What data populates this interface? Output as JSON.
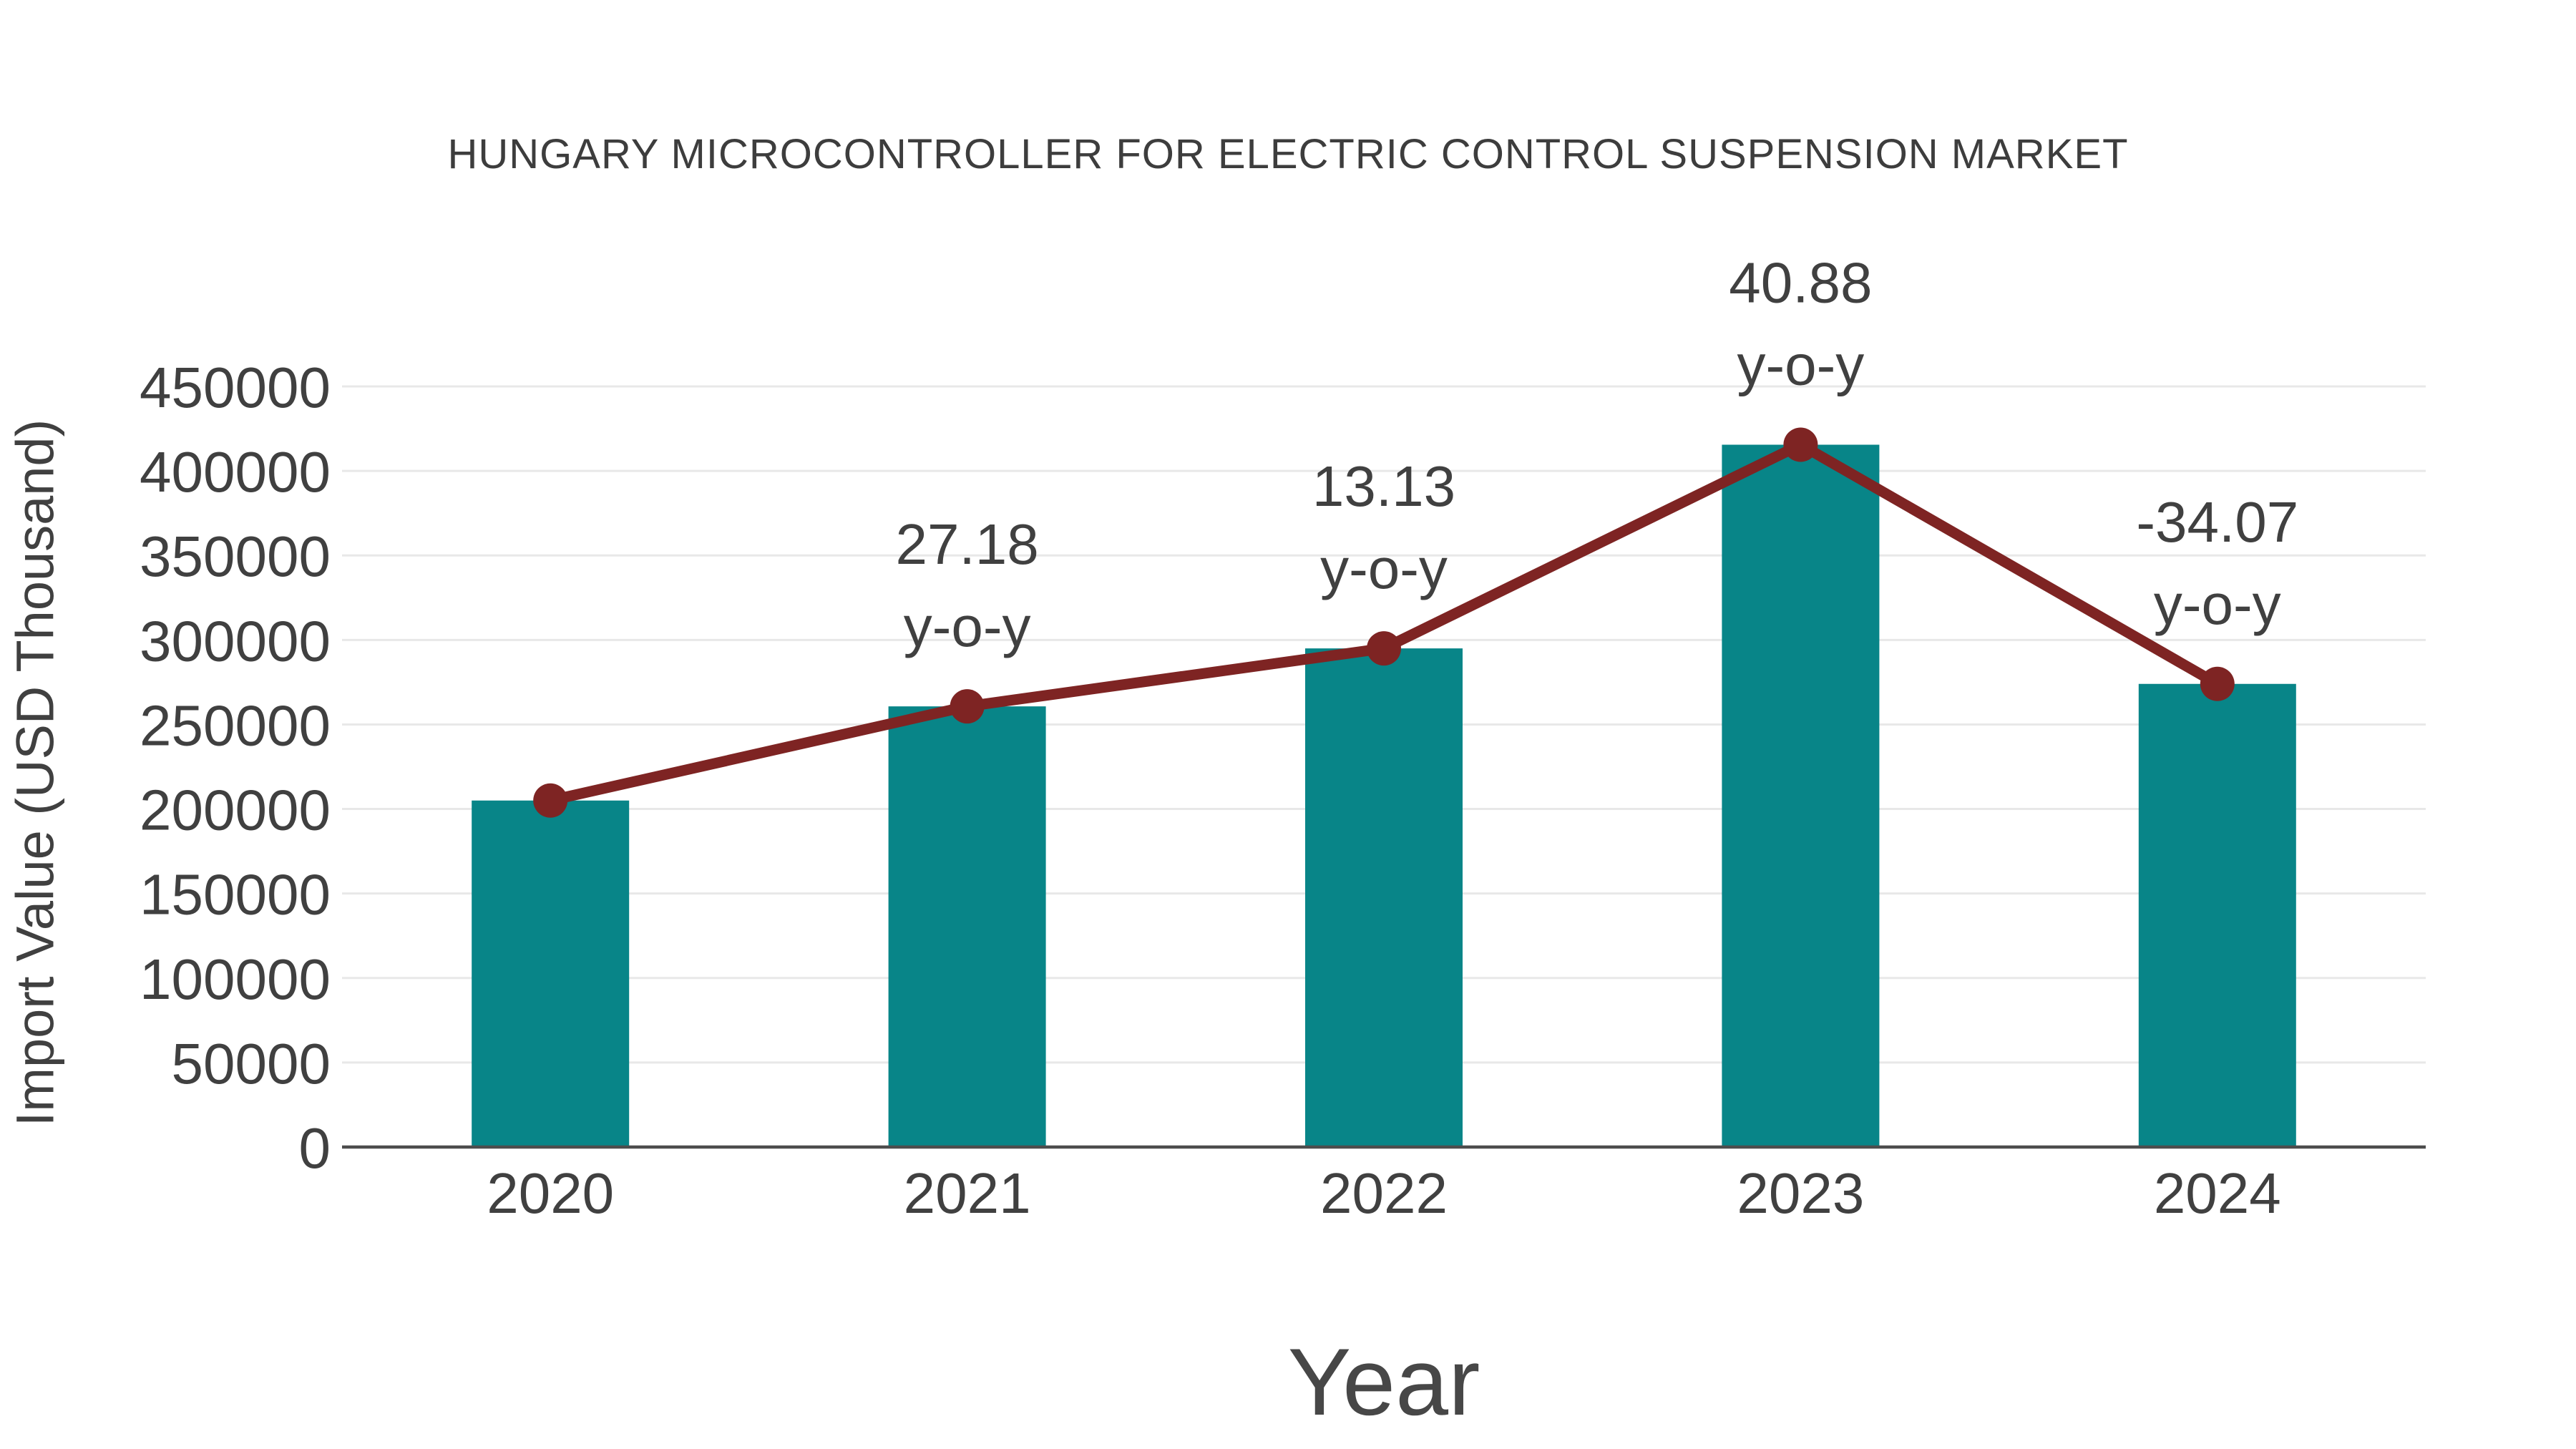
{
  "chart": {
    "title": "HUNGARY MICROCONTROLLER FOR ELECTRIC CONTROL SUSPENSION MARKET",
    "xlabel": "Year",
    "ylabel": "Import Value (USD Thousand)"
  },
  "chart_data": {
    "type": "bar",
    "title": "HUNGARY MICROCONTROLLER FOR ELECTRIC CONTROL SUSPENSION MARKET",
    "xlabel": "Year",
    "ylabel": "Import Value (USD Thousand)",
    "categories": [
      "2020",
      "2021",
      "2022",
      "2023",
      "2024"
    ],
    "series": [
      {
        "name": "Import Value (USD Thousand)",
        "type": "bar",
        "color": "#088588",
        "values": [
          205000,
          260700,
          295000,
          415500,
          274000
        ]
      },
      {
        "name": "y-o-y trend line",
        "type": "line",
        "color": "#7e2423",
        "values": [
          205000,
          260700,
          295000,
          415500,
          274000
        ]
      }
    ],
    "yoy_annotations": [
      {
        "category": "2021",
        "value": "27.18",
        "label": "y-o-y"
      },
      {
        "category": "2022",
        "value": "13.13",
        "label": "y-o-y"
      },
      {
        "category": "2023",
        "value": "40.88",
        "label": "y-o-y"
      },
      {
        "category": "2024",
        "value": "-34.07",
        "label": "y-o-y"
      }
    ],
    "ylim": [
      0,
      450000
    ],
    "yticks": [
      0,
      50000,
      100000,
      150000,
      200000,
      250000,
      300000,
      350000,
      400000,
      450000
    ],
    "grid": true,
    "legend_position": "none"
  },
  "colors": {
    "bar": "#088588",
    "line": "#7e2423",
    "marker": "#7e2423",
    "grid": "#e8e8e8",
    "axis": "#4d4d4d",
    "tick_text": "#404040",
    "annotation_text": "#404040",
    "title_text": "#3d3d3d",
    "background": "#ffffff"
  }
}
